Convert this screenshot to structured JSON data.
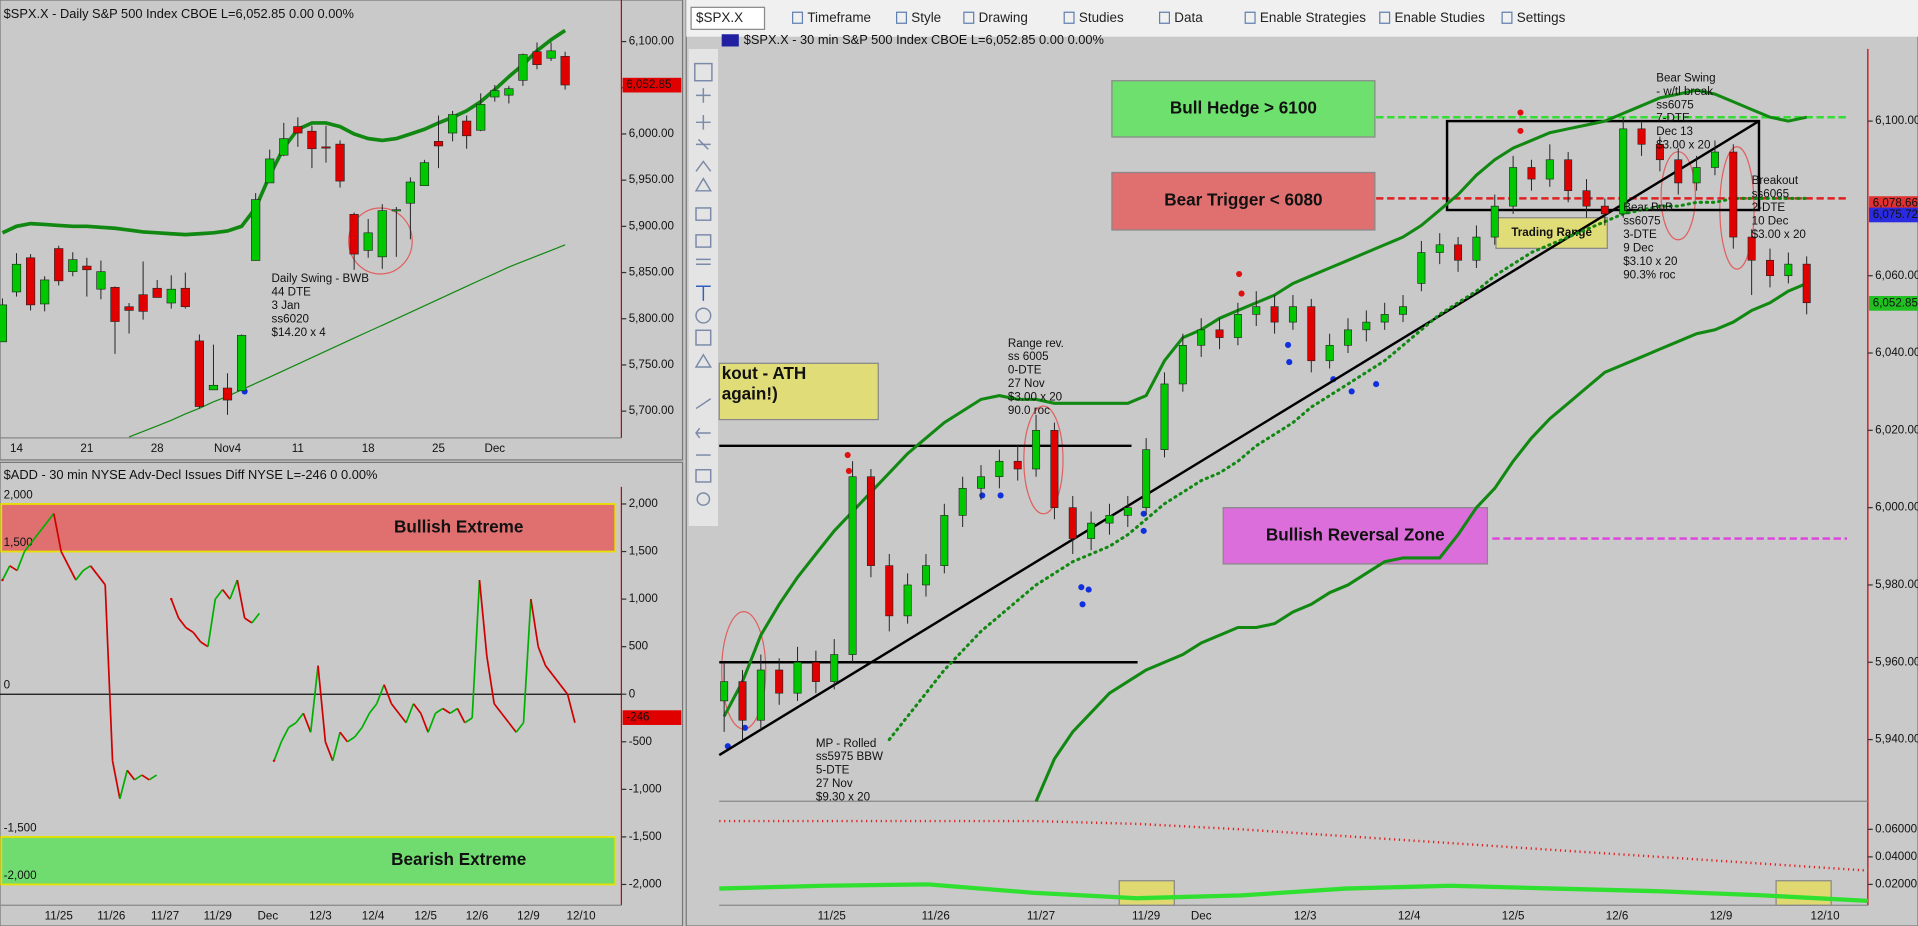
{
  "toolbar": {
    "symbol": "$SPX.X",
    "items": [
      "Timeframe",
      "Style",
      "Drawing",
      "Studies",
      "Data",
      "Enable Strategies",
      "Enable Studies",
      "Settings"
    ]
  },
  "daily": {
    "header": "$SPX.X - Daily  S&P 500 Index  CBOE  L=6,052.85  0.00  0.00%",
    "ylim": [
      5671,
      6145
    ],
    "yticks": [
      {
        "value": 6100,
        "label": "6,100.00"
      },
      {
        "value": 6050,
        "label": "6,050.00"
      },
      {
        "value": 6000,
        "label": "6,000.00"
      },
      {
        "value": 5950,
        "label": "5,950.00"
      },
      {
        "value": 5900,
        "label": "5,900.00"
      },
      {
        "value": 5850,
        "label": "5,850.00"
      },
      {
        "value": 5800,
        "label": "5,800.00"
      },
      {
        "value": 5750,
        "label": "5,750.00"
      },
      {
        "value": 5700,
        "label": "5,700.00"
      }
    ],
    "xticks": [
      "14",
      "21",
      "28",
      "Nov4",
      "11",
      "18",
      "25",
      "Dec"
    ],
    "last": {
      "value": 6052.85,
      "label": "6,052.85",
      "color": "#e00000"
    },
    "candles": [
      [
        5775,
        5822,
        5775,
        5815
      ],
      [
        5829,
        5871,
        5824,
        5859
      ],
      [
        5866,
        5870,
        5809,
        5815
      ],
      [
        5816,
        5846,
        5808,
        5842
      ],
      [
        5876,
        5879,
        5836,
        5841
      ],
      [
        5851,
        5872,
        5846,
        5864
      ],
      [
        5857,
        5866,
        5824,
        5853
      ],
      [
        5832,
        5863,
        5821,
        5851
      ],
      [
        5834,
        5835,
        5762,
        5797
      ],
      [
        5813,
        5817,
        5784,
        5809
      ],
      [
        5826,
        5862,
        5799,
        5808
      ],
      [
        5833,
        5842,
        5823,
        5823
      ],
      [
        5817,
        5847,
        5811,
        5832
      ],
      [
        5833,
        5850,
        5811,
        5813
      ],
      [
        5776,
        5783,
        5703,
        5705
      ],
      [
        5723,
        5772,
        5723,
        5728
      ],
      [
        5725,
        5741,
        5696,
        5712
      ],
      [
        5722,
        5783,
        5722,
        5782
      ],
      [
        5863,
        5936,
        5863,
        5929
      ],
      [
        5947,
        5983,
        5947,
        5973
      ],
      [
        5977,
        6012,
        5976,
        5995
      ],
      [
        6008,
        6018,
        5986,
        6001
      ],
      [
        6003,
        6009,
        5963,
        5984
      ],
      [
        5986,
        6009,
        5969,
        5985
      ],
      [
        5989,
        5993,
        5942,
        5949
      ],
      [
        5913,
        5915,
        5853,
        5870
      ],
      [
        5874,
        5908,
        5866,
        5893
      ],
      [
        5867,
        5924,
        5854,
        5917
      ],
      [
        5917,
        5921,
        5867,
        5918
      ],
      [
        5925,
        5953,
        5886,
        5948
      ],
      [
        5944,
        5972,
        5945,
        5969
      ],
      [
        5992,
        6020,
        5963,
        5987
      ],
      [
        6001,
        6025,
        5992,
        6021
      ],
      [
        6014,
        6020,
        5984,
        5998
      ],
      [
        6004,
        6044,
        6003,
        6032
      ],
      [
        6040,
        6053,
        6035,
        6047
      ],
      [
        6042,
        6052,
        6033,
        6049
      ],
      [
        6058,
        6087,
        6052,
        6086
      ],
      [
        6089,
        6099,
        6070,
        6075
      ],
      [
        6082,
        6099,
        6079,
        6090
      ],
      [
        6084,
        6089,
        6048,
        6053
      ]
    ],
    "upper_band": [
      5893,
      5900,
      5903,
      5902,
      5901,
      5900,
      5900,
      5899,
      5898,
      5896,
      5894,
      5893,
      5892,
      5891,
      5892,
      5893,
      5895,
      5900,
      5920,
      5955,
      5985,
      6005,
      6012,
      6012,
      6008,
      6000,
      5995,
      5993,
      5995,
      6000,
      6005,
      6012,
      6018,
      6025,
      6035,
      6048,
      6062,
      6075,
      6090,
      6102,
      6112
    ],
    "ma": [
      null,
      null,
      null,
      null,
      null,
      null,
      null,
      null,
      null,
      5672,
      5678,
      5684,
      5690,
      5697,
      5703,
      5710,
      5716,
      5723,
      5730,
      5737,
      5744,
      5751,
      5758,
      5765,
      5772,
      5779,
      5786,
      5793,
      5800,
      5807,
      5814,
      5821,
      5828,
      5835,
      5842,
      5849,
      5856,
      5862,
      5868,
      5874,
      5880
    ],
    "candle_colors": {
      "up": "#00c800",
      "down": "#e00000"
    },
    "band_color": "#118811",
    "note": {
      "lines": [
        "Daily Swing - BWB",
        "44 DTE",
        "3 Jan",
        "ss6020",
        "$14.20 x 4"
      ],
      "color": "#10108a"
    }
  },
  "add": {
    "header": "$ADD - 30 min  NYSE Adv-Decl Issues Diff  NYSE  L=-246  0  0.00%",
    "ylim": [
      -2218,
      2180
    ],
    "yticks": [
      {
        "value": 2000,
        "label": "2,000"
      },
      {
        "value": 1500,
        "label": "1,500"
      },
      {
        "value": 1000,
        "label": "1,000"
      },
      500,
      0,
      -500,
      {
        "value": -1000,
        "label": "-1,000"
      },
      {
        "value": -1500,
        "label": "-1,500"
      },
      {
        "value": -2000,
        "label": "-2,000"
      }
    ],
    "zero_label": "0",
    "zones": [
      {
        "name": "Bullish Extreme",
        "color": "#e07070",
        "top": {
          "value": 2000,
          "label": "2,000"
        },
        "bottom": {
          "value": 1500,
          "label": "1,500"
        }
      },
      {
        "name": "Bearish Extreme",
        "color": "#70dc70",
        "top": {
          "value": -1500,
          "label": "-1,500"
        },
        "bottom": {
          "value": -2000,
          "label": "-2,000"
        }
      }
    ],
    "last": {
      "value": -246,
      "label": "-246",
      "color": "#e00000"
    },
    "xticks": [
      "11/25",
      "11/26",
      "11/27",
      "11/29",
      "Dec",
      "12/3",
      "12/4",
      "12/5",
      "12/6",
      "12/9",
      "12/10"
    ],
    "values": [
      1200,
      1350,
      1300,
      1500,
      1600,
      1700,
      1800,
      1900,
      1500,
      1350,
      1200,
      1300,
      1350,
      1250,
      1150,
      -700,
      -1100,
      -800,
      -900,
      -850,
      -900,
      -850,
      null,
      1000,
      800,
      700,
      650,
      550,
      500,
      1000,
      1100,
      1000,
      1200,
      800,
      750,
      850,
      null,
      -700,
      -500,
      -350,
      -300,
      -200,
      -400,
      300,
      -500,
      -700,
      -400,
      -500,
      -450,
      -350,
      -200,
      -100,
      100,
      -100,
      -200,
      -300,
      -100,
      -200,
      -400,
      -200,
      -150,
      -200,
      -150,
      -300,
      -250,
      1200,
      400,
      -100,
      -200,
      -300,
      -400,
      -300,
      1000,
      500,
      300,
      200,
      100,
      0,
      -300
    ],
    "colors": {
      "up": "#00b000",
      "down": "#d00000"
    }
  },
  "main": {
    "header": "$SPX.X - 30 min  S&P 500 Index  CBOE  L=6,052.85  0.00  0.00%",
    "ylim": [
      5924.05,
      6118.67
    ],
    "yticks": [
      {
        "value": 6100,
        "label": "6,100.00"
      },
      {
        "value": 6060,
        "label": "6,060.00"
      },
      {
        "value": 6040,
        "label": "6,040.00"
      },
      {
        "value": 6020,
        "label": "6,020.00"
      },
      {
        "value": 6000,
        "label": "6,000.00"
      },
      {
        "value": 5980,
        "label": "5,980.00"
      },
      {
        "value": 5960,
        "label": "5,960.00"
      },
      {
        "value": 5940,
        "label": "5,940.00"
      }
    ],
    "price_labels": [
      {
        "value": 6078.66,
        "label": "6,078.66",
        "color": "#e03030"
      },
      {
        "value": 6075.72,
        "label": "6,075.72",
        "color": "#2a2ae0"
      },
      {
        "value": 6052.85,
        "label": "6,052.85",
        "color": "#20c020"
      }
    ],
    "xticks": [
      "11/25",
      "11/26",
      "11/27",
      "11/29",
      "Dec",
      "12/3",
      "12/4",
      "12/5",
      "12/6",
      "12/9",
      "12/10"
    ],
    "candles": [
      [
        5950,
        5960,
        5942,
        5955
      ],
      [
        5955,
        5958,
        5940,
        5945
      ],
      [
        5945,
        5962,
        5943,
        5958
      ],
      [
        5958,
        5961,
        5949,
        5952
      ],
      [
        5952,
        5964,
        5950,
        5960
      ],
      [
        5960,
        5963,
        5952,
        5955
      ],
      [
        5955,
        5966,
        5953,
        5962
      ],
      [
        5962,
        6012,
        5960,
        6008
      ],
      [
        6008,
        6010,
        5982,
        5985
      ],
      [
        5985,
        5988,
        5968,
        5972
      ],
      [
        5972,
        5983,
        5970,
        5980
      ],
      [
        5980,
        5988,
        5977,
        5985
      ],
      [
        5985,
        6001,
        5983,
        5998
      ],
      [
        5998,
        6008,
        5995,
        6005
      ],
      [
        6005,
        6011,
        6002,
        6008
      ],
      [
        6008,
        6015,
        6005,
        6012
      ],
      [
        6012,
        6016,
        6007,
        6010
      ],
      [
        6010,
        6024,
        6008,
        6020
      ],
      [
        6020,
        6022,
        5997,
        6000
      ],
      [
        6000,
        6003,
        5988,
        5992
      ],
      [
        5992,
        5999,
        5989,
        5996
      ],
      [
        5996,
        6001,
        5993,
        5998
      ],
      [
        5998,
        6003,
        5995,
        6000
      ],
      [
        6000,
        6018,
        5998,
        6015
      ],
      [
        6015,
        6035,
        6013,
        6032
      ],
      [
        6032,
        6045,
        6030,
        6042
      ],
      [
        6042,
        6049,
        6039,
        6046
      ],
      [
        6046,
        6049,
        6041,
        6044
      ],
      [
        6044,
        6053,
        6042,
        6050
      ],
      [
        6050,
        6056,
        6047,
        6052
      ],
      [
        6052,
        6055,
        6045,
        6048
      ],
      [
        6048,
        6055,
        6046,
        6052
      ],
      [
        6052,
        6054,
        6035,
        6038
      ],
      [
        6038,
        6045,
        6036,
        6042
      ],
      [
        6042,
        6049,
        6040,
        6046
      ],
      [
        6046,
        6051,
        6043,
        6048
      ],
      [
        6048,
        6053,
        6046,
        6050
      ],
      [
        6050,
        6055,
        6048,
        6052
      ],
      [
        6058,
        6069,
        6056,
        6066
      ],
      [
        6066,
        6071,
        6063,
        6068
      ],
      [
        6068,
        6070,
        6061,
        6064
      ],
      [
        6064,
        6073,
        6062,
        6070
      ],
      [
        6070,
        6081,
        6068,
        6078
      ],
      [
        6078,
        6091,
        6076,
        6088
      ],
      [
        6088,
        6090,
        6082,
        6085
      ],
      [
        6085,
        6094,
        6083,
        6090
      ],
      [
        6090,
        6092,
        6079,
        6082
      ],
      [
        6082,
        6085,
        6075,
        6078
      ],
      [
        6078,
        6080,
        6073,
        6076
      ],
      [
        6076,
        6101,
        6075,
        6098
      ],
      [
        6098,
        6100,
        6091,
        6094
      ],
      [
        6094,
        6096,
        6087,
        6090
      ],
      [
        6090,
        6093,
        6081,
        6084
      ],
      [
        6084,
        6091,
        6082,
        6088
      ],
      [
        6088,
        6095,
        6086,
        6092
      ],
      [
        6092,
        6094,
        6067,
        6070
      ],
      [
        6070,
        6072,
        6055,
        6064
      ],
      [
        6064,
        6067,
        6057,
        6060
      ],
      [
        6060,
        6066,
        6058,
        6063
      ],
      [
        6063,
        6065,
        6050,
        6053
      ]
    ],
    "upper_band": [
      5946,
      5955,
      5967,
      5975,
      5982,
      5988,
      5994,
      5999,
      6004,
      6009,
      6014,
      6018,
      6022,
      6025,
      6028,
      6029,
      6028,
      6028,
      6027,
      6027,
      6027,
      6027,
      6027,
      6029,
      6038,
      6044,
      6046,
      6049,
      6051,
      6053,
      6055,
      6058,
      6060,
      6062,
      6064,
      6066,
      6068,
      6070,
      6073,
      6077,
      6081,
      6086,
      6090,
      6093,
      6095,
      6097,
      6098,
      6099,
      6100,
      6102,
      6104,
      6106,
      6107,
      6108,
      6107,
      6105,
      6103,
      6101,
      6100,
      6101
    ],
    "lower_band": [
      null,
      null,
      null,
      null,
      null,
      null,
      null,
      null,
      null,
      null,
      null,
      null,
      null,
      null,
      null,
      null,
      null,
      5924,
      5935,
      5942,
      5947,
      5952,
      5955,
      5958,
      5960,
      5962,
      5965,
      5967,
      5969,
      5969,
      5970,
      5973,
      5975,
      5978,
      5980,
      5983,
      5986,
      5987,
      5987,
      5987,
      5993,
      6000,
      6005,
      6012,
      6018,
      6023,
      6027,
      6031,
      6035,
      6037,
      6039,
      6041,
      6043,
      6045,
      6046,
      6048,
      6051,
      6053,
      6056,
      6058
    ],
    "dotted": [
      null,
      null,
      null,
      null,
      null,
      null,
      null,
      null,
      null,
      5940,
      5946,
      5952,
      5958,
      5963,
      5968,
      5972,
      5976,
      5980,
      5983,
      5986,
      5988,
      5990,
      5993,
      5997,
      6001,
      6004,
      6007,
      6009,
      6012,
      6016,
      6019,
      6022,
      6026,
      6029,
      6032,
      6035,
      6038,
      6042,
      6046,
      6050,
      6053,
      6056,
      6060,
      6063,
      6066,
      6068,
      6070,
      6072,
      6074,
      6076,
      6077,
      6078,
      6078,
      6079,
      6079,
      6080,
      6080,
      6080,
      6080,
      6080
    ],
    "candle_colors": {
      "up": "#00c800",
      "down": "#e00000"
    },
    "band_color": "#118811",
    "levels": [
      {
        "value": 6101,
        "color": "#33dd33"
      },
      {
        "value": 6080,
        "color": "#e02020"
      },
      {
        "value": 5992,
        "color": "#e040e0"
      },
      {
        "value": 6016,
        "color": "#000000"
      },
      {
        "value": 5960,
        "color": "#000000"
      }
    ],
    "trendline": [
      5936,
      6100
    ],
    "range_box": [
      6077,
      6100
    ],
    "boxes": [
      {
        "label": "Bull Hedge > 6100",
        "color": "#6ee06e"
      },
      {
        "label": "Bear Trigger < 6080",
        "color": "#e07070"
      },
      {
        "label": "Bullish Reversal Zone",
        "color": "#dc6edc"
      }
    ],
    "yellow_notes": [
      [
        "kout - ATH",
        "again!)"
      ],
      [
        "Trading Range"
      ]
    ],
    "notes": [
      {
        "lines": [
          "Range rev.",
          "ss 6005",
          "0-DTE",
          "27 Nov",
          "$3.00 x 20",
          "90.0 roc"
        ],
        "color": "#111111"
      },
      {
        "lines": [
          "MP - Rolled",
          "ss5975 BBW",
          "5-DTE",
          "27 Nov",
          "$9.30 x 20"
        ],
        "color": "#111111"
      },
      {
        "lines": [
          "Bear BnB",
          "ss6075",
          "3-DTE",
          "9 Dec",
          "$3.10 x 20",
          "90.3% roc"
        ],
        "color": "#111111"
      },
      {
        "lines": [
          "Bear Swing",
          "- w/tl break",
          "ss6075",
          "7-DTE",
          "Dec 13",
          "$3.00 x 20"
        ],
        "color": "#8a1010"
      },
      {
        "lines": [
          "Breakout",
          "ss6065",
          "2-DTE",
          "10 Dec",
          "$3.00 x 20"
        ],
        "color": "#8a1010"
      }
    ],
    "indicator": {
      "ylim": [
        0.0049,
        0.0804
      ],
      "yticks": [
        {
          "value": 0.06,
          "label": "0.06000"
        },
        {
          "value": 0.04,
          "label": "0.04000"
        },
        {
          "value": 0.02,
          "label": "0.02000"
        }
      ],
      "dotted": [
        0.066,
        0.066,
        0.066,
        0.066,
        0.064,
        0.06,
        0.055,
        0.05,
        0.045,
        0.04,
        0.035,
        0.03
      ],
      "line": [
        0.017,
        0.019,
        0.02,
        0.014,
        0.01,
        0.012,
        0.017,
        0.019,
        0.017,
        0.015,
        0.012,
        0.008
      ],
      "dotted_color": "#e02020",
      "line_color": "#30e030"
    }
  }
}
